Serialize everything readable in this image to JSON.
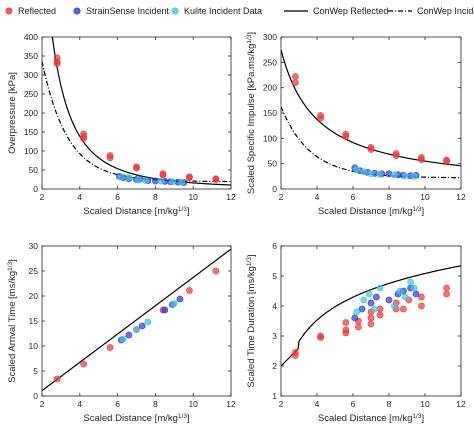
{
  "legend": {
    "items": [
      {
        "label": "Reflected",
        "kind": "marker",
        "color": "#e8373a"
      },
      {
        "label": "StrainSense Incident",
        "kind": "marker",
        "color": "#2b3bd6"
      },
      {
        "label": "Kulite Incident Data",
        "kind": "marker",
        "color": "#3fc8d6"
      },
      {
        "label": "ConWep Reflected",
        "kind": "solid",
        "color": "#000000"
      },
      {
        "label": "ConWep Incident",
        "kind": "dashdot",
        "color": "#000000"
      }
    ]
  },
  "chart_data": [
    {
      "type": "scatter",
      "xlabel": "Scaled Distance [m/kg",
      "xlabel_sup": "1/3",
      "xlabel_end": "]",
      "ylabel": "Overpressure [kPa]",
      "ylabel_sup": "",
      "ylabel_end": "",
      "xlim": [
        2,
        12
      ],
      "ylim": [
        0,
        400
      ],
      "xticks": [
        2,
        4,
        6,
        8,
        10,
        12
      ],
      "yticks": [
        0,
        50,
        100,
        150,
        200,
        250,
        300,
        350,
        400
      ],
      "series": [
        {
          "name": "Reflected",
          "color": "#e8373a",
          "points": [
            [
              2.8,
              345
            ],
            [
              2.8,
              335
            ],
            [
              2.8,
              330
            ],
            [
              4.2,
              145
            ],
            [
              4.2,
              138
            ],
            [
              4.2,
              132
            ],
            [
              5.6,
              88
            ],
            [
              5.6,
              82
            ],
            [
              7.0,
              58
            ],
            [
              7.0,
              55
            ],
            [
              8.4,
              40
            ],
            [
              8.4,
              37
            ],
            [
              9.8,
              32
            ],
            [
              9.8,
              30
            ],
            [
              11.2,
              27
            ],
            [
              11.2,
              25
            ]
          ]
        },
        {
          "name": "StrainSense Incident",
          "color": "#2b3bd6",
          "points": [
            [
              6.1,
              33
            ],
            [
              6.3,
              30
            ],
            [
              6.6,
              27
            ],
            [
              7.0,
              25
            ],
            [
              7.2,
              26
            ],
            [
              7.6,
              22
            ],
            [
              8.0,
              21
            ],
            [
              8.5,
              20
            ],
            [
              8.8,
              19
            ],
            [
              9.2,
              18
            ],
            [
              9.5,
              17
            ]
          ]
        },
        {
          "name": "Kulite Incident Data",
          "color": "#3fc8d6",
          "points": [
            [
              6.2,
              32
            ],
            [
              6.6,
              30
            ],
            [
              7.1,
              24
            ],
            [
              7.5,
              22
            ],
            [
              8.3,
              21
            ],
            [
              8.9,
              19
            ],
            [
              9.4,
              18
            ]
          ]
        }
      ],
      "curves": [
        "ConWep Reflected",
        "ConWep Incident"
      ]
    },
    {
      "type": "scatter",
      "xlabel": "Scaled Distance [m/kg",
      "xlabel_sup": "1/3",
      "xlabel_end": "]",
      "ylabel": "Scaled Specific Impulse [kPa.ms/kg",
      "ylabel_sup": "1/3",
      "ylabel_end": "]",
      "xlim": [
        2,
        12
      ],
      "ylim": [
        0,
        300
      ],
      "xticks": [
        2,
        4,
        6,
        8,
        10,
        12
      ],
      "yticks": [
        0,
        50,
        100,
        150,
        200,
        250,
        300
      ],
      "series": [
        {
          "name": "Reflected",
          "color": "#e8373a",
          "points": [
            [
              2.8,
              222
            ],
            [
              2.8,
              210
            ],
            [
              4.2,
              145
            ],
            [
              4.2,
              140
            ],
            [
              5.6,
              108
            ],
            [
              5.6,
              104
            ],
            [
              7.0,
              82
            ],
            [
              7.0,
              78
            ],
            [
              8.4,
              70
            ],
            [
              8.4,
              66
            ],
            [
              9.8,
              62
            ],
            [
              9.8,
              58
            ],
            [
              11.2,
              57
            ],
            [
              11.2,
              55
            ]
          ]
        },
        {
          "name": "StrainSense Incident",
          "color": "#2b3bd6",
          "points": [
            [
              6.1,
              42
            ],
            [
              6.4,
              36
            ],
            [
              6.8,
              33
            ],
            [
              7.2,
              31
            ],
            [
              7.6,
              30
            ],
            [
              8.0,
              30
            ],
            [
              8.5,
              28
            ],
            [
              8.8,
              27
            ],
            [
              9.2,
              26
            ],
            [
              9.5,
              27
            ]
          ]
        },
        {
          "name": "Kulite Incident Data",
          "color": "#3fc8d6",
          "points": [
            [
              6.2,
              38
            ],
            [
              6.6,
              34
            ],
            [
              7.0,
              30
            ],
            [
              7.5,
              29
            ],
            [
              8.3,
              28
            ],
            [
              8.9,
              26
            ],
            [
              9.4,
              25
            ]
          ]
        }
      ],
      "curves": [
        "ConWep Reflected",
        "ConWep Incident"
      ]
    },
    {
      "type": "scatter",
      "xlabel": "Scaled Distance [m/kg",
      "xlabel_sup": "1/3",
      "xlabel_end": "]",
      "ylabel": "Scaled Arrival Time [ms/kg",
      "ylabel_sup": "1/3",
      "ylabel_end": "]",
      "xlim": [
        2,
        12
      ],
      "ylim": [
        0,
        30
      ],
      "xticks": [
        2,
        4,
        6,
        8,
        10,
        12
      ],
      "yticks": [
        0,
        5,
        10,
        15,
        20,
        25,
        30
      ],
      "series": [
        {
          "name": "Reflected",
          "color": "#e8373a",
          "points": [
            [
              2.8,
              3.4
            ],
            [
              4.2,
              6.4
            ],
            [
              5.6,
              9.7
            ],
            [
              7.0,
              13.3
            ],
            [
              8.4,
              17.2
            ],
            [
              9.8,
              21.1
            ],
            [
              11.2,
              25.0
            ]
          ]
        },
        {
          "name": "StrainSense Incident",
          "color": "#2b3bd6",
          "points": [
            [
              6.2,
              11.2
            ],
            [
              6.6,
              12.2
            ],
            [
              7.3,
              14.0
            ],
            [
              8.5,
              17.2
            ],
            [
              8.9,
              18.3
            ],
            [
              9.3,
              19.4
            ]
          ]
        },
        {
          "name": "Kulite Incident Data",
          "color": "#3fc8d6",
          "points": [
            [
              6.3,
              11.4
            ],
            [
              7.0,
              13.3
            ],
            [
              7.6,
              14.8
            ],
            [
              9.0,
              18.5
            ]
          ]
        }
      ],
      "curves": [
        "ConWep Arrival"
      ]
    },
    {
      "type": "scatter",
      "xlabel": "Scaled Distance [m/kg",
      "xlabel_sup": "1/3",
      "xlabel_end": "]",
      "ylabel": "Scaled Time Duration [ms/kg",
      "ylabel_sup": "1/3",
      "ylabel_end": "]",
      "xlim": [
        2,
        12
      ],
      "ylim": [
        1,
        6
      ],
      "xticks": [
        2,
        4,
        6,
        8,
        10,
        12
      ],
      "yticks": [
        1,
        2,
        3,
        4,
        5,
        6
      ],
      "series": [
        {
          "name": "Reflected",
          "color": "#e8373a",
          "points": [
            [
              2.8,
              2.45
            ],
            [
              2.8,
              2.35
            ],
            [
              4.2,
              3.0
            ],
            [
              4.2,
              2.95
            ],
            [
              5.6,
              3.45
            ],
            [
              5.6,
              3.2
            ],
            [
              5.6,
              3.1
            ],
            [
              6.3,
              3.5
            ],
            [
              6.3,
              3.3
            ],
            [
              7.0,
              3.8
            ],
            [
              7.0,
              3.6
            ],
            [
              7.0,
              3.4
            ],
            [
              7.5,
              3.9
            ],
            [
              7.5,
              3.7
            ],
            [
              8.4,
              4.1
            ],
            [
              8.4,
              3.9
            ],
            [
              8.8,
              3.9
            ],
            [
              9.1,
              4.2
            ],
            [
              9.8,
              4.3
            ],
            [
              9.8,
              4.0
            ],
            [
              11.2,
              4.6
            ],
            [
              11.2,
              4.4
            ]
          ]
        },
        {
          "name": "StrainSense Incident",
          "color": "#2b3bd6",
          "points": [
            [
              6.1,
              3.6
            ],
            [
              6.5,
              3.9
            ],
            [
              7.0,
              4.1
            ],
            [
              7.3,
              4.3
            ],
            [
              8.0,
              4.2
            ],
            [
              8.5,
              4.4
            ],
            [
              8.8,
              4.5
            ],
            [
              9.2,
              4.6
            ],
            [
              9.5,
              4.4
            ]
          ]
        },
        {
          "name": "Kulite Incident Data",
          "color": "#3fc8d6",
          "points": [
            [
              6.2,
              3.8
            ],
            [
              6.6,
              4.2
            ],
            [
              6.9,
              4.4
            ],
            [
              7.2,
              3.9
            ],
            [
              7.5,
              4.6
            ],
            [
              8.3,
              4.0
            ],
            [
              8.6,
              4.5
            ],
            [
              8.9,
              4.3
            ],
            [
              9.2,
              4.8
            ],
            [
              9.4,
              4.6
            ]
          ]
        }
      ],
      "curves": [
        "ConWep Duration"
      ]
    }
  ]
}
